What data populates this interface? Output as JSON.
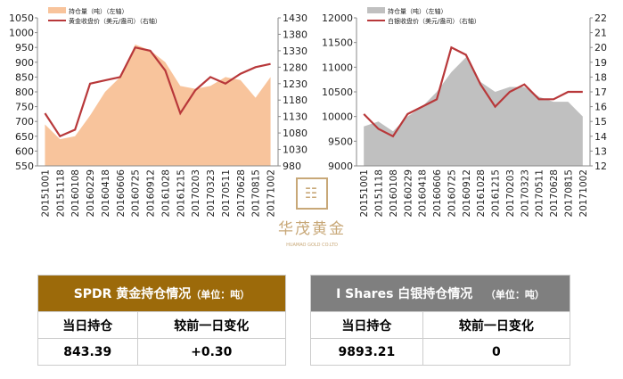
{
  "chart_data": [
    {
      "type": "area-line",
      "categories": [
        "20151001",
        "20151118",
        "20160108",
        "20160229",
        "20160418",
        "20160606",
        "20160725",
        "20160912",
        "20161028",
        "20161215",
        "20170203",
        "20170323",
        "20170511",
        "20170628",
        "20170815",
        "20171002"
      ],
      "series": [
        {
          "name": "持仓量（吨）（左轴）",
          "color": "#f8c49c",
          "values": [
            690,
            640,
            650,
            720,
            800,
            850,
            960,
            940,
            900,
            820,
            810,
            820,
            850,
            840,
            780,
            850
          ]
        },
        {
          "name": "黄金收盘价（美元/盎司）（右轴）",
          "color": "#b8383a",
          "axis": "y2",
          "values": [
            1140,
            1070,
            1090,
            1230,
            1240,
            1250,
            1340,
            1330,
            1270,
            1140,
            1210,
            1250,
            1230,
            1260,
            1280,
            1290
          ]
        }
      ],
      "ylim": [
        550,
        1050
      ],
      "yticks": [
        550,
        600,
        650,
        700,
        750,
        800,
        850,
        900,
        950,
        1000,
        1050
      ],
      "y2lim": [
        980,
        1430
      ],
      "y2ticks": [
        980,
        1030,
        1080,
        1130,
        1180,
        1230,
        1280,
        1330,
        1380,
        1430
      ]
    },
    {
      "type": "area-line",
      "categories": [
        "20151001",
        "20151118",
        "20160108",
        "20160229",
        "20160418",
        "20160606",
        "20160725",
        "20160912",
        "20161028",
        "20161215",
        "20170203",
        "20170323",
        "20170511",
        "20170628",
        "20170815",
        "20171002"
      ],
      "series": [
        {
          "name": "持仓量（吨）（左轴）",
          "color": "#c0c0c0",
          "values": [
            9800,
            9900,
            9700,
            10000,
            10200,
            10500,
            10900,
            11200,
            10700,
            10500,
            10600,
            10600,
            10400,
            10300,
            10300,
            10000
          ]
        },
        {
          "name": "白银收盘价（美元/盎司）（右轴）",
          "color": "#b8383a",
          "axis": "y2",
          "values": [
            15.5,
            14.5,
            14,
            15.5,
            16,
            16.5,
            20,
            19.5,
            17.5,
            16,
            17,
            17.5,
            16.5,
            16.5,
            17,
            17
          ]
        }
      ],
      "ylim": [
        9000,
        12000
      ],
      "yticks": [
        9000,
        9500,
        10000,
        10500,
        11000,
        11500,
        12000
      ],
      "y2lim": [
        12,
        22
      ],
      "y2ticks": [
        12,
        13,
        14,
        15,
        16,
        17,
        18,
        19,
        20,
        21,
        22
      ]
    }
  ],
  "logo": {
    "name": "华茂黄金",
    "subtitle": "HUAMAO GOLD CO.LTD"
  },
  "tables": [
    {
      "title": "SPDR 黄金持仓情况",
      "unit": "（单位：吨）",
      "columns": [
        "当日持仓",
        "较前一日变化"
      ],
      "row": [
        "843.39",
        "+0.30"
      ]
    },
    {
      "title": "I Shares 白银持仓情况",
      "unit": "（单位：吨）",
      "columns": [
        "当日持仓",
        "较前一日变化"
      ],
      "row": [
        "9893.21",
        "0"
      ]
    }
  ]
}
